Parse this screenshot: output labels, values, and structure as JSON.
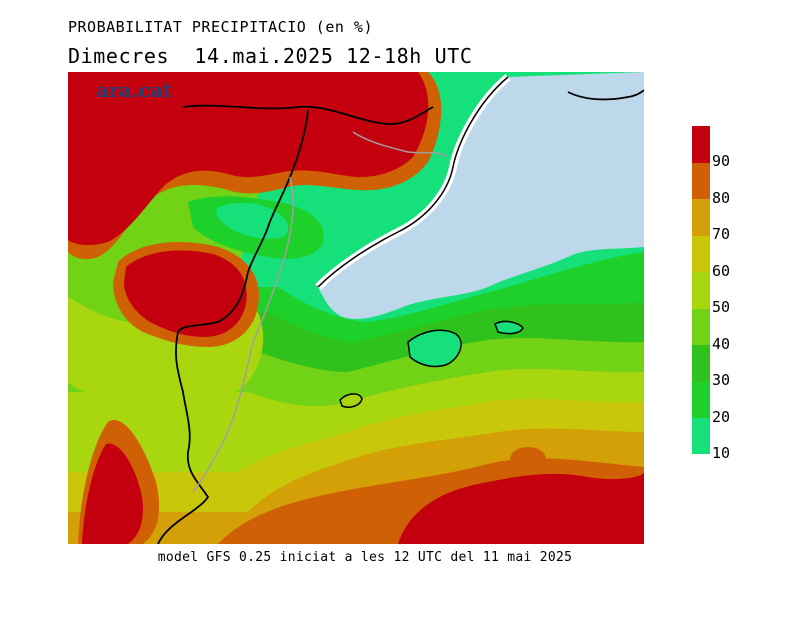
{
  "header": {
    "title": "PROBABILITAT PRECIPITACIO (en %)",
    "subtitle": "Dimecres  14.mai.2025 12-18h UTC"
  },
  "logo": {
    "text": "ara.cat"
  },
  "footer": {
    "text": "model GFS 0.25 iniciat a les 12 UTC del 11 mai 2025"
  },
  "colors": {
    "sea": "#bcd8ea",
    "coast": "#ffffff",
    "border": "#000000",
    "region_border": "#a0a0a0"
  },
  "legend": {
    "levels": [
      {
        "label": "10",
        "color": "#15e07a"
      },
      {
        "label": "20",
        "color": "#1ed02a"
      },
      {
        "label": "30",
        "color": "#2fc21d"
      },
      {
        "label": "40",
        "color": "#72d215"
      },
      {
        "label": "50",
        "color": "#a9d70f"
      },
      {
        "label": "60",
        "color": "#c9c70a"
      },
      {
        "label": "70",
        "color": "#d4a008"
      },
      {
        "label": "80",
        "color": "#cf6006"
      },
      {
        "label": "90",
        "color": "#c5000e"
      }
    ]
  }
}
